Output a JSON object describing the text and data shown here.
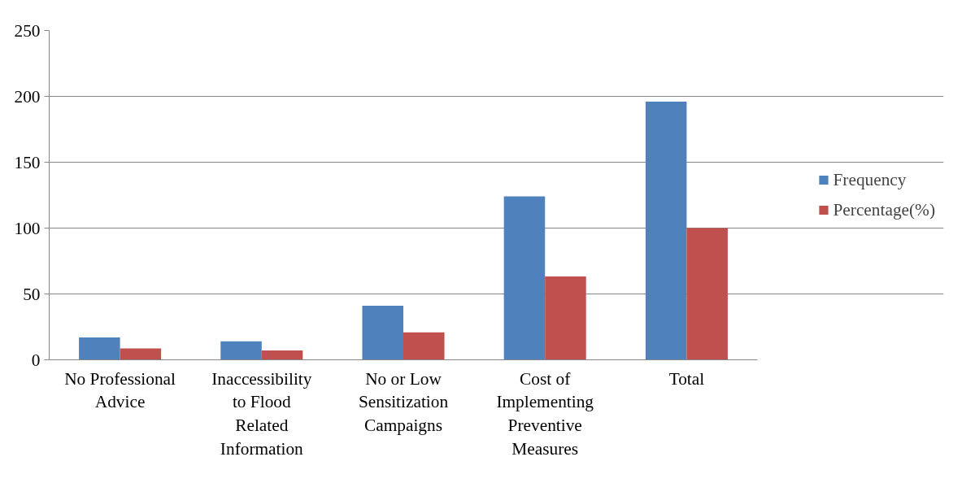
{
  "chart_data": {
    "type": "bar",
    "categories": [
      "No Professional Advice",
      "Inaccessibility to Flood Related Information",
      "No or Low Sensitization Campaigns",
      "Cost of Implementing Preventive Measures",
      "Total"
    ],
    "series": [
      {
        "name": "Frequency",
        "color": "#4f81bd",
        "values": [
          17,
          14,
          41,
          124,
          196
        ]
      },
      {
        "name": "Percentage(%)",
        "color": "#c0504d",
        "values": [
          8.7,
          7.1,
          20.9,
          63.3,
          100
        ]
      }
    ],
    "ylim": [
      0,
      250
    ],
    "yticks": [
      0,
      50,
      100,
      150,
      200,
      250
    ],
    "grid": "y",
    "legend": "right"
  }
}
